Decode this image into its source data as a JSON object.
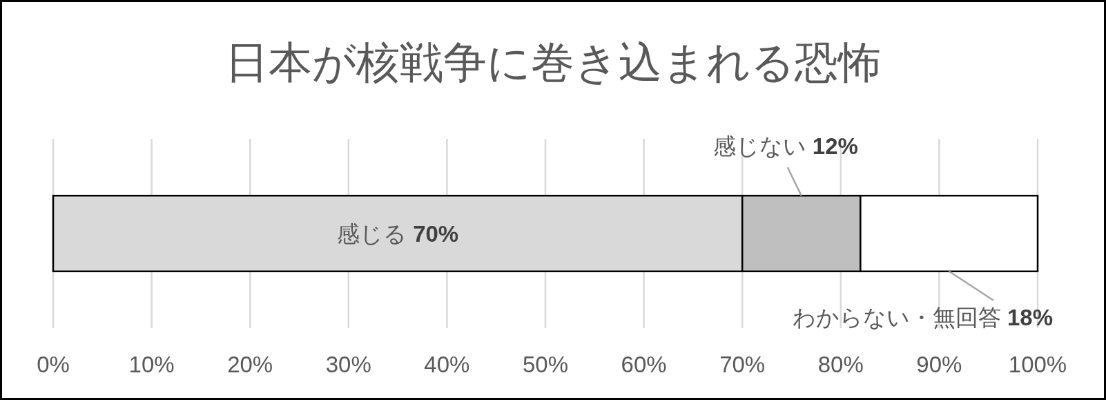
{
  "chart_data": {
    "type": "bar",
    "orientation": "horizontal",
    "stacked": true,
    "title": "日本が核戦争に巻き込まれる恐怖",
    "categories": [
      null
    ],
    "series": [
      {
        "name": "感じる",
        "color": "#d9d9d9",
        "values": [
          70
        ],
        "value_labels": [
          "70%"
        ]
      },
      {
        "name": "感じない",
        "color": "#bfbfbf",
        "values": [
          12
        ],
        "value_labels": [
          "12%"
        ]
      },
      {
        "name": "わからない・無回答",
        "color": "#ffffff",
        "values": [
          18
        ],
        "value_labels": [
          "18%"
        ]
      }
    ],
    "xlim": [
      0,
      100
    ],
    "xticks": [
      {
        "value": 0,
        "label": "0%"
      },
      {
        "value": 10,
        "label": "10%"
      },
      {
        "value": 20,
        "label": "20%"
      },
      {
        "value": 30,
        "label": "30%"
      },
      {
        "value": 40,
        "label": "40%"
      },
      {
        "value": 50,
        "label": "50%"
      },
      {
        "value": 60,
        "label": "60%"
      },
      {
        "value": 70,
        "label": "70%"
      },
      {
        "value": 80,
        "label": "80%"
      },
      {
        "value": 90,
        "label": "90%"
      },
      {
        "value": 100,
        "label": "100%"
      }
    ],
    "grid": "x"
  }
}
